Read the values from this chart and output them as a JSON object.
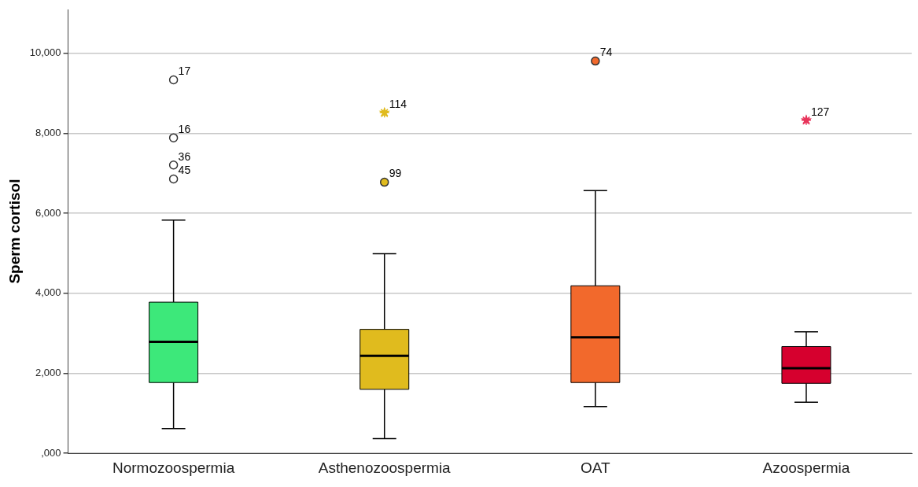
{
  "chart_data": {
    "type": "box",
    "ylabel": "Sperm cortisol",
    "categories": [
      "Normozoospermia",
      "Asthenozoospermia",
      "OAT",
      "Azoospermia"
    ],
    "colors": [
      "#3de87a",
      "#e0bb1e",
      "#f2692c",
      "#d6002e"
    ],
    "boxes": [
      {
        "low": 620,
        "q1": 1770,
        "median": 2790,
        "q3": 3780,
        "high": 5830
      },
      {
        "low": 370,
        "q1": 1600,
        "median": 2440,
        "q3": 3100,
        "high": 4990
      },
      {
        "low": 1170,
        "q1": 1770,
        "median": 2900,
        "q3": 4190,
        "high": 6570
      },
      {
        "low": 1280,
        "q1": 1750,
        "median": 2130,
        "q3": 2670,
        "high": 3040
      }
    ],
    "series": [
      {
        "type": "scatter",
        "marker": "circle",
        "x": [
          "Normozoospermia",
          "Normozoospermia",
          "Normozoospermia",
          "Normozoospermia",
          "Asthenozoospermia",
          "OAT"
        ],
        "values": [
          9340,
          7890,
          7210,
          6860,
          6780,
          9810
        ],
        "colors": [
          "#ffffff",
          "#ffffff",
          "#ffffff",
          "#ffffff",
          "#e0bb1e",
          "#f2692c"
        ]
      },
      {
        "type": "scatter",
        "marker": "star",
        "x": [
          "Asthenozoospermia",
          "Azoospermia"
        ],
        "values": [
          8520,
          8330
        ],
        "colors": [
          "#e0bb1e",
          "#e8335a"
        ]
      }
    ],
    "ylim": [
      0,
      11100
    ],
    "yticks": [
      {
        "value": 0,
        "label": ",000"
      },
      {
        "value": 2000,
        "label": "2,000"
      },
      {
        "value": 4000,
        "label": "4,000"
      },
      {
        "value": 6000,
        "label": "6,000"
      },
      {
        "value": 8000,
        "label": "8,000"
      },
      {
        "value": 10000,
        "label": "10,000"
      }
    ],
    "grid": "y",
    "legend": false,
    "annotations": [
      {
        "text": "17",
        "x": "Normozoospermia",
        "y": 9340
      },
      {
        "text": "16",
        "x": "Normozoospermia",
        "y": 7890
      },
      {
        "text": "36",
        "x": "Normozoospermia",
        "y": 7210
      },
      {
        "text": "45",
        "x": "Normozoospermia",
        "y": 6860
      },
      {
        "text": "99",
        "x": "Asthenozoospermia",
        "y": 6780
      },
      {
        "text": "114",
        "x": "Asthenozoospermia",
        "y": 8520
      },
      {
        "text": "74",
        "x": "OAT",
        "y": 9810
      },
      {
        "text": "127",
        "x": "Azoospermia",
        "y": 8330
      }
    ]
  }
}
